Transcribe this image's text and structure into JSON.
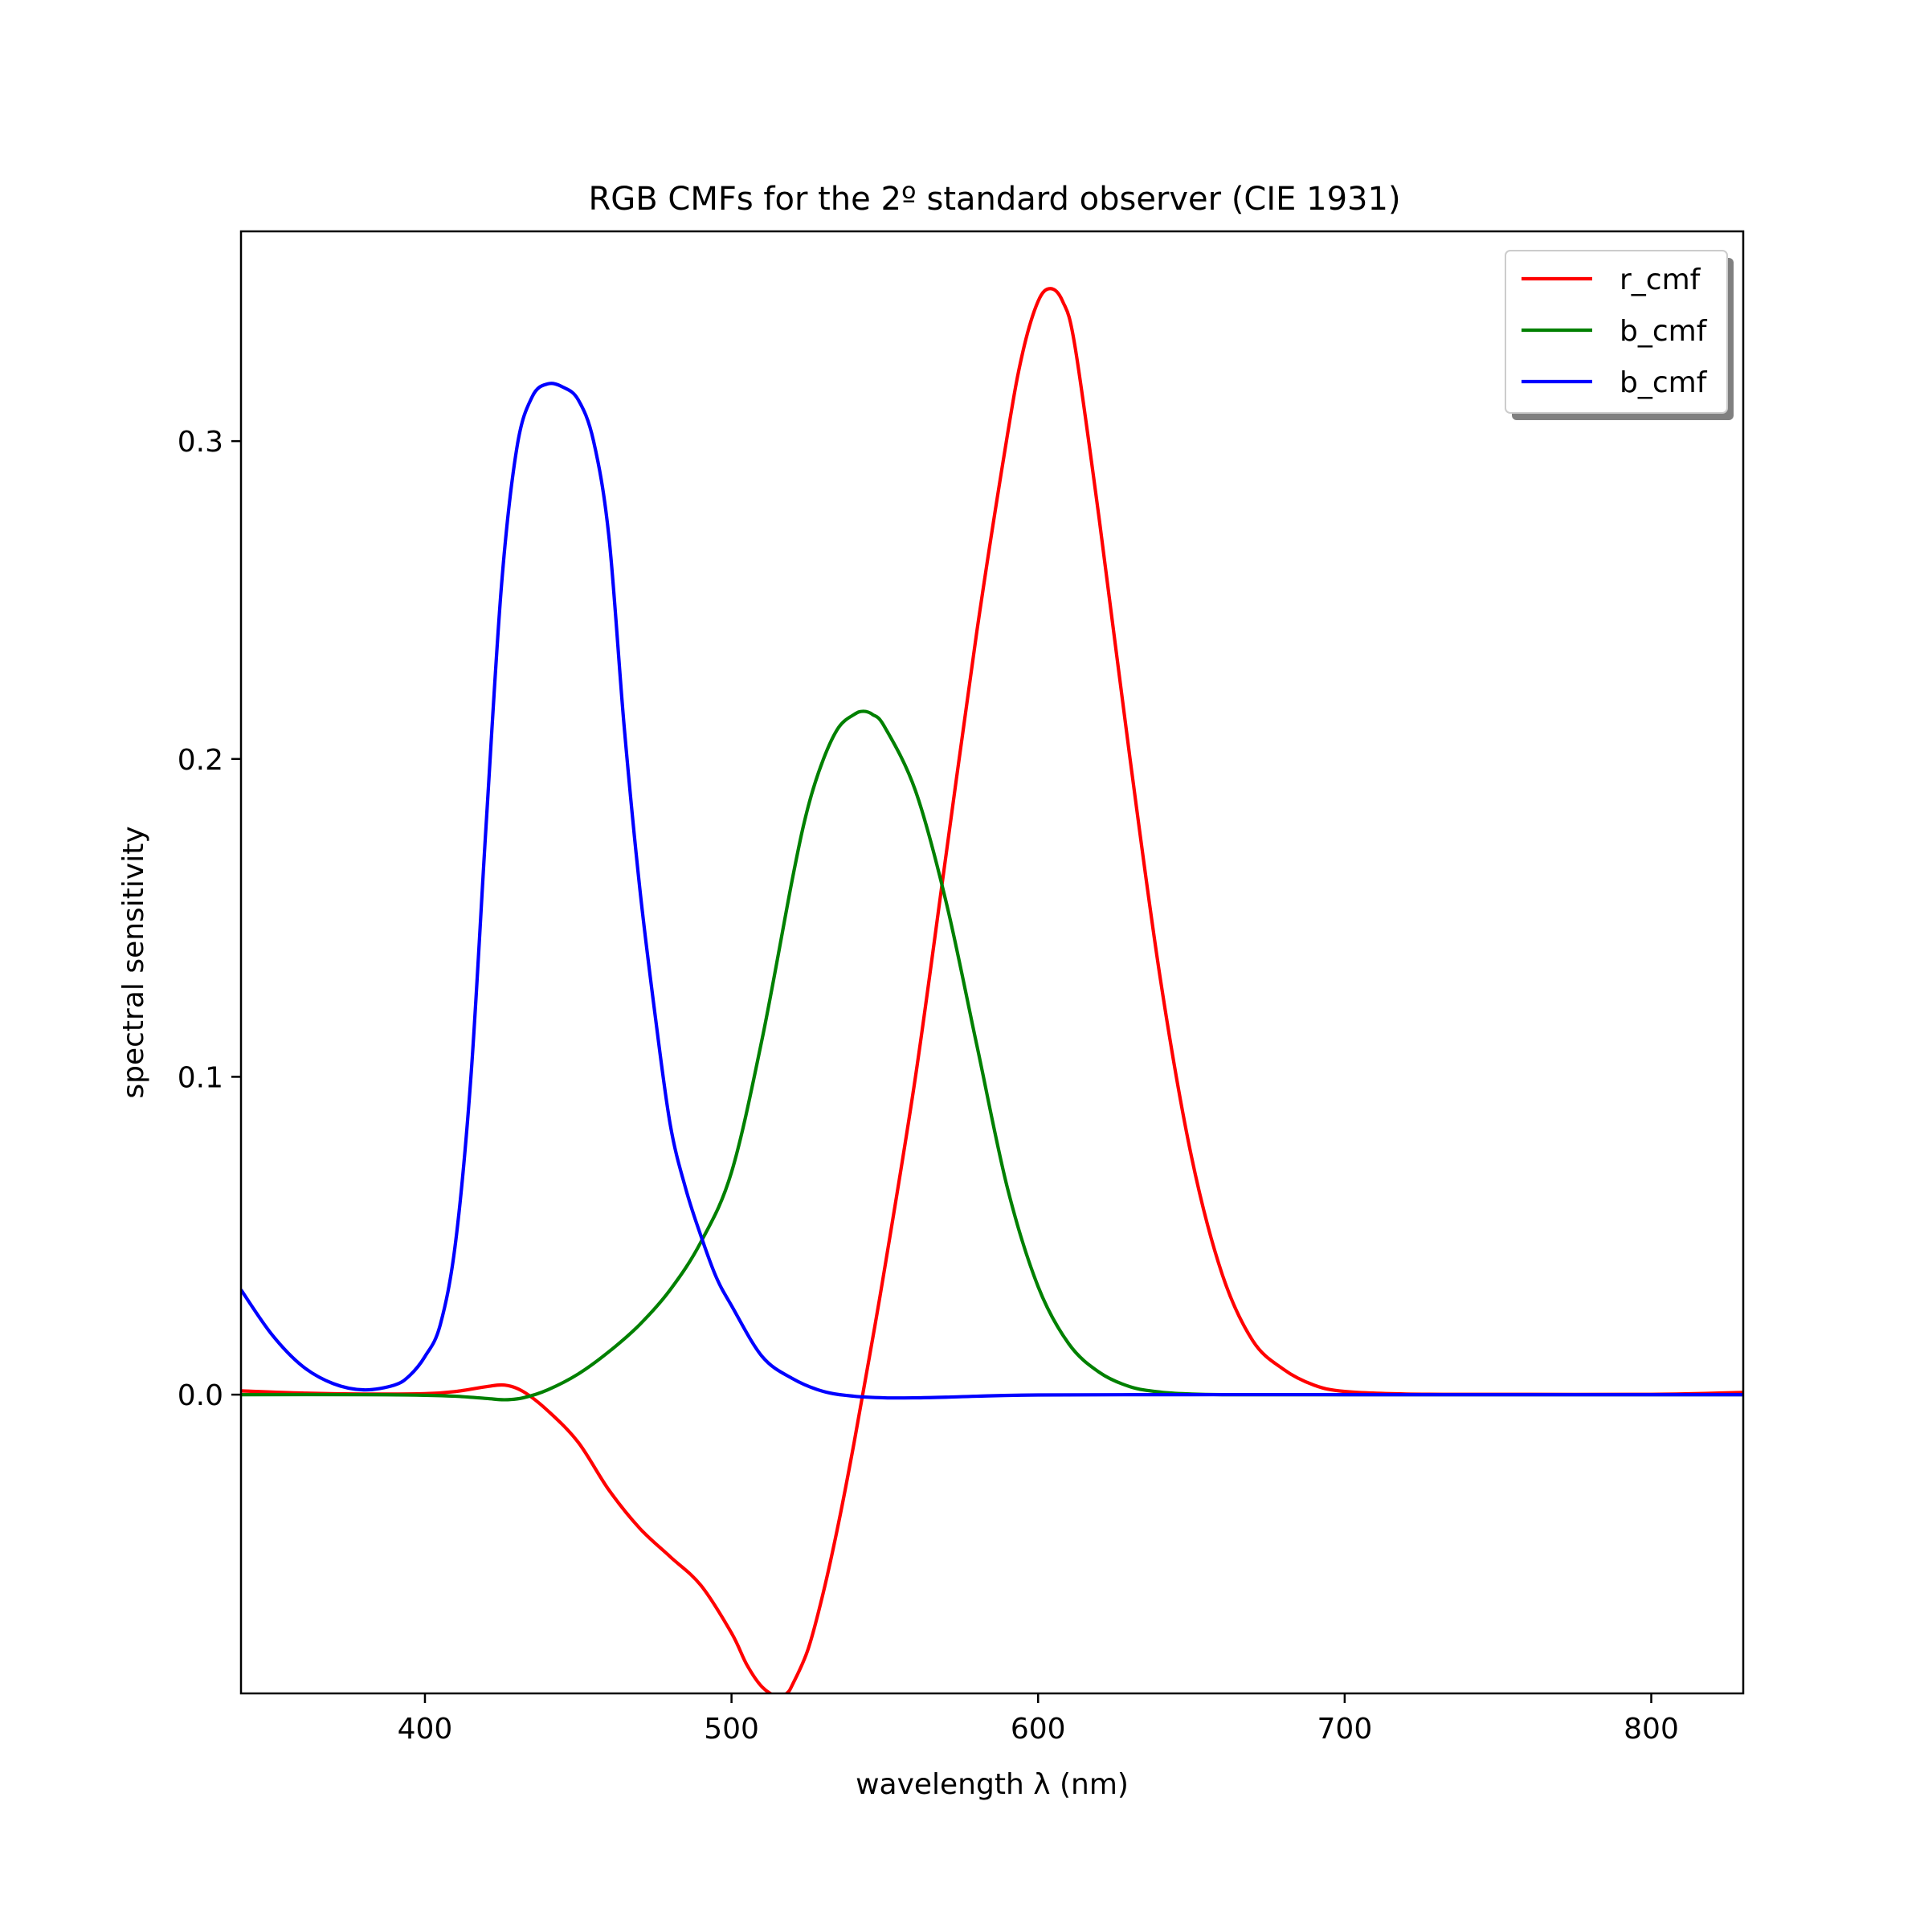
{
  "chart_data": {
    "type": "line",
    "title": "RGB CMFs for the 2º standard observer (CIE 1931)",
    "xlabel": "wavelength λ (nm)",
    "ylabel": "spectral sensitivity",
    "xlim": [
      340,
      830
    ],
    "ylim": [
      -0.094,
      0.366
    ],
    "x_ticks": [
      400,
      500,
      600,
      700,
      800
    ],
    "x_tick_labels": [
      "400",
      "500",
      "600",
      "700",
      "800"
    ],
    "y_ticks": [
      0.0,
      0.1,
      0.2,
      0.3
    ],
    "y_tick_labels": [
      "0.0",
      "0.1",
      "0.2",
      "0.3"
    ],
    "grid": false,
    "legend_position": "top-right",
    "series": [
      {
        "name": "r_cmf",
        "color": "#ff0000",
        "x": [
          340,
          360,
          380,
          400,
          410,
          420,
          426,
          432,
          440,
          450,
          460,
          470,
          480,
          490,
          500,
          505,
          510,
          515,
          518,
          520,
          525,
          530,
          535,
          540,
          545,
          550,
          560,
          570,
          580,
          590,
          595,
          600,
          604,
          608,
          612,
          620,
          630,
          640,
          650,
          660,
          670,
          680,
          690,
          700,
          720,
          750,
          800,
          830
        ],
        "y": [
          0.0012,
          0.0005,
          0.0002,
          0.0003,
          0.001,
          0.0025,
          0.003,
          0.001,
          -0.005,
          -0.015,
          -0.03,
          -0.042,
          -0.051,
          -0.06,
          -0.075,
          -0.085,
          -0.092,
          -0.095,
          -0.094,
          -0.091,
          -0.08,
          -0.062,
          -0.04,
          -0.015,
          0.012,
          0.04,
          0.1,
          0.17,
          0.24,
          0.302,
          0.328,
          0.344,
          0.348,
          0.344,
          0.33,
          0.275,
          0.2,
          0.13,
          0.075,
          0.038,
          0.017,
          0.008,
          0.003,
          0.001,
          0.0002,
          0.0001,
          0.0001,
          0.0007
        ]
      },
      {
        "name": "b_cmf",
        "color": "#008000",
        "x": [
          340,
          380,
          400,
          410,
          420,
          426,
          432,
          440,
          450,
          460,
          470,
          480,
          490,
          500,
          510,
          520,
          525,
          530,
          535,
          540,
          543,
          546,
          550,
          560,
          570,
          580,
          590,
          600,
          610,
          620,
          630,
          640,
          650,
          660,
          680,
          700,
          830
        ],
        "y": [
          0.0,
          0.0,
          -0.0002,
          -0.0005,
          -0.0012,
          -0.0016,
          -0.001,
          0.0015,
          0.0065,
          0.0135,
          0.022,
          0.033,
          0.048,
          0.07,
          0.112,
          0.163,
          0.185,
          0.2,
          0.21,
          0.214,
          0.215,
          0.214,
          0.21,
          0.19,
          0.155,
          0.11,
          0.065,
          0.034,
          0.016,
          0.007,
          0.0025,
          0.0008,
          0.0002,
          0.0,
          0.0,
          0.0,
          0.0
        ]
      },
      {
        "name": "b_cmf",
        "color": "#0000ff",
        "x": [
          340,
          350,
          360,
          370,
          380,
          390,
          395,
          400,
          405,
          410,
          415,
          420,
          425,
          430,
          435,
          440,
          445,
          450,
          455,
          460,
          465,
          470,
          475,
          480,
          485,
          490,
          495,
          500,
          510,
          520,
          530,
          540,
          550,
          560,
          570,
          580,
          600,
          650,
          700,
          830
        ],
        "y": [
          0.033,
          0.019,
          0.009,
          0.0035,
          0.0015,
          0.003,
          0.006,
          0.012,
          0.022,
          0.048,
          0.1,
          0.18,
          0.255,
          0.298,
          0.314,
          0.318,
          0.317,
          0.313,
          0.3,
          0.27,
          0.21,
          0.16,
          0.12,
          0.085,
          0.065,
          0.05,
          0.037,
          0.028,
          0.012,
          0.005,
          0.001,
          -0.0005,
          -0.001,
          -0.001,
          -0.0008,
          -0.0005,
          -0.0001,
          0.0,
          0.0,
          0.0
        ]
      }
    ]
  }
}
